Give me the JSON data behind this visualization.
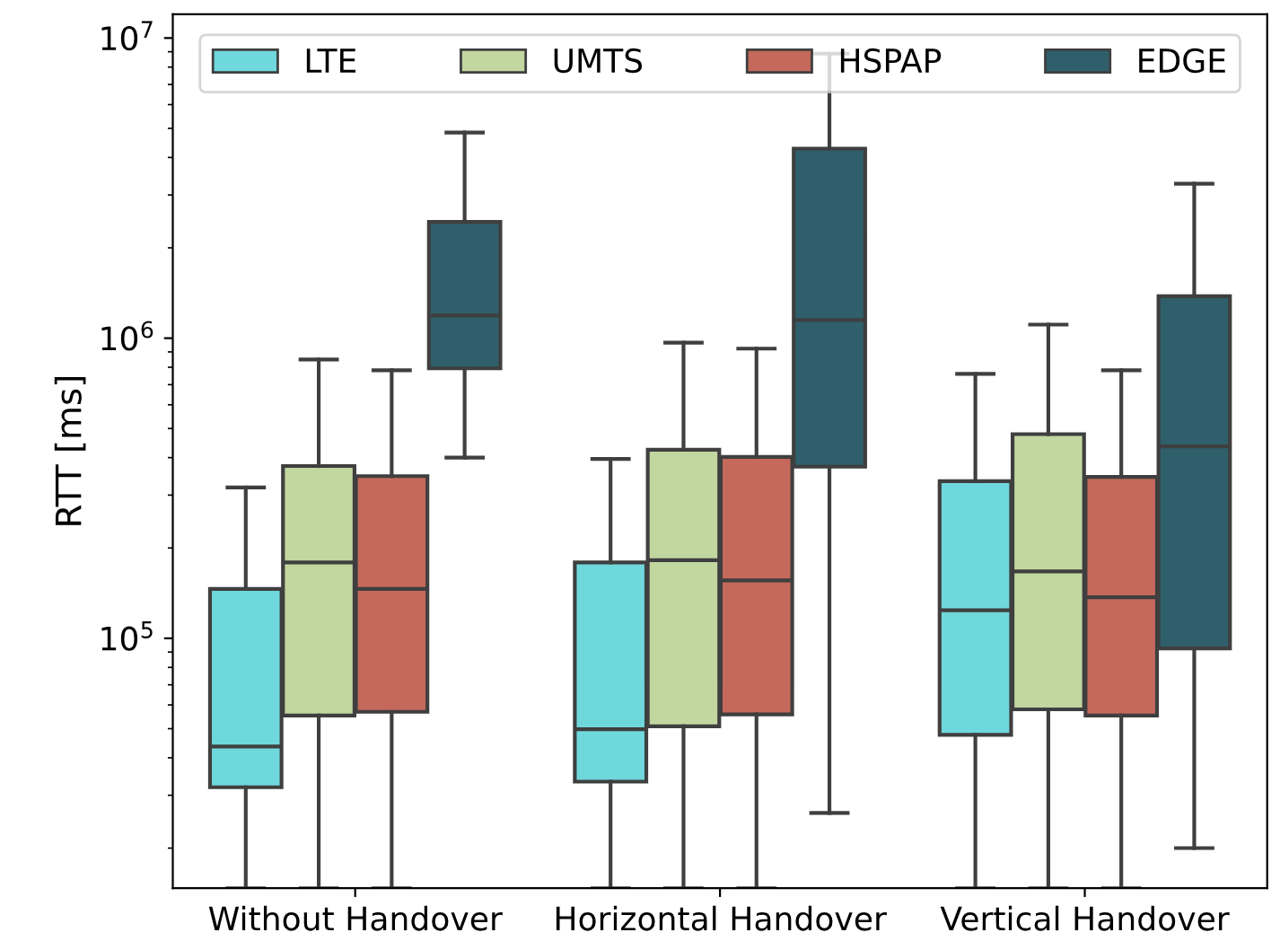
{
  "chart_data": {
    "type": "box",
    "ylabel": "RTT [ms]",
    "log": "y",
    "ylim": [
      14700,
      12000000
    ],
    "yticks": [
      {
        "value": 100000,
        "label": "10$^{5}$"
      },
      {
        "value": 1000000,
        "label": "10$^{6}$"
      },
      {
        "value": 10000000,
        "label": "10$^{7}$"
      }
    ],
    "categories": [
      "Without Handover",
      "Horizontal Handover",
      "Vertical Handover"
    ],
    "legend": "top",
    "grid": false,
    "series": [
      {
        "name": "LTE",
        "color": "#6fd8dc",
        "boxes": [
          {
            "low": 14700,
            "q1": 31900,
            "median": 43600,
            "q3": 146000,
            "high": 318000
          },
          {
            "low": 14700,
            "q1": 33300,
            "median": 49800,
            "q3": 179000,
            "high": 396000
          },
          {
            "low": 14700,
            "q1": 47700,
            "median": 124000,
            "q3": 334000,
            "high": 760000
          }
        ]
      },
      {
        "name": "UMTS",
        "color": "#c2d6a0",
        "boxes": [
          {
            "low": 14700,
            "q1": 55300,
            "median": 179000,
            "q3": 375000,
            "high": 849000
          },
          {
            "low": 14700,
            "q1": 50900,
            "median": 182000,
            "q3": 425000,
            "high": 966000
          },
          {
            "low": 14700,
            "q1": 58000,
            "median": 167000,
            "q3": 479000,
            "high": 1110000
          }
        ]
      },
      {
        "name": "HSPAP",
        "color": "#c4695b",
        "boxes": [
          {
            "low": 14700,
            "q1": 56900,
            "median": 146000,
            "q3": 347000,
            "high": 782000
          },
          {
            "low": 14700,
            "q1": 55800,
            "median": 156000,
            "q3": 402000,
            "high": 923000
          },
          {
            "low": 14700,
            "q1": 55300,
            "median": 137000,
            "q3": 345000,
            "high": 782000
          }
        ]
      },
      {
        "name": "EDGE",
        "color": "#2f5f6b",
        "boxes": [
          {
            "low": 400000,
            "q1": 793000,
            "median": 1190000,
            "q3": 2440000,
            "high": 4840000
          },
          {
            "low": 26200,
            "q1": 373000,
            "median": 1150000,
            "q3": 4280000,
            "high": 8870000
          },
          {
            "low": 20000,
            "q1": 92500,
            "median": 436000,
            "q3": 1380000,
            "high": 3270000
          }
        ]
      }
    ]
  }
}
